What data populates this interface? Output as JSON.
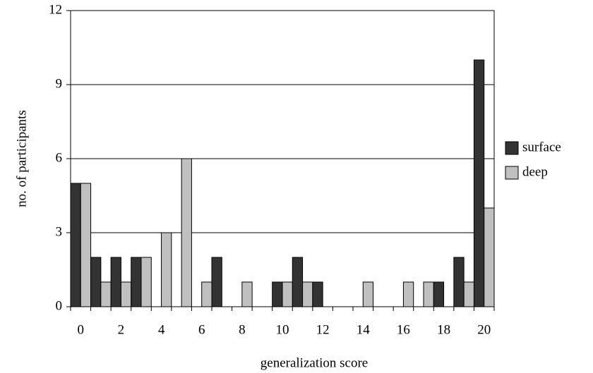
{
  "chart_data": {
    "type": "bar",
    "xlabel": "generalization score",
    "ylabel": "no. of participants",
    "categories": [
      "0",
      null,
      "2",
      null,
      "4",
      null,
      "6",
      null,
      "8",
      null,
      "10",
      null,
      "12",
      null,
      "14",
      null,
      "16",
      null,
      "18",
      null,
      "20"
    ],
    "series": [
      {
        "name": "surface",
        "color": "#333333",
        "values": [
          5,
          2,
          2,
          2,
          0,
          0,
          0,
          2,
          0,
          0,
          1,
          2,
          1,
          0,
          0,
          0,
          0,
          0,
          1,
          2,
          10
        ]
      },
      {
        "name": "deep",
        "color": "#c0c0c0",
        "values": [
          5,
          1,
          1,
          2,
          3,
          6,
          1,
          0,
          1,
          0,
          1,
          1,
          0,
          0,
          1,
          0,
          1,
          1,
          0,
          1,
          4
        ]
      }
    ],
    "ylim": [
      0,
      12
    ],
    "yticks": [
      0,
      3,
      6,
      9,
      12
    ],
    "grid": true,
    "legend": "right"
  }
}
